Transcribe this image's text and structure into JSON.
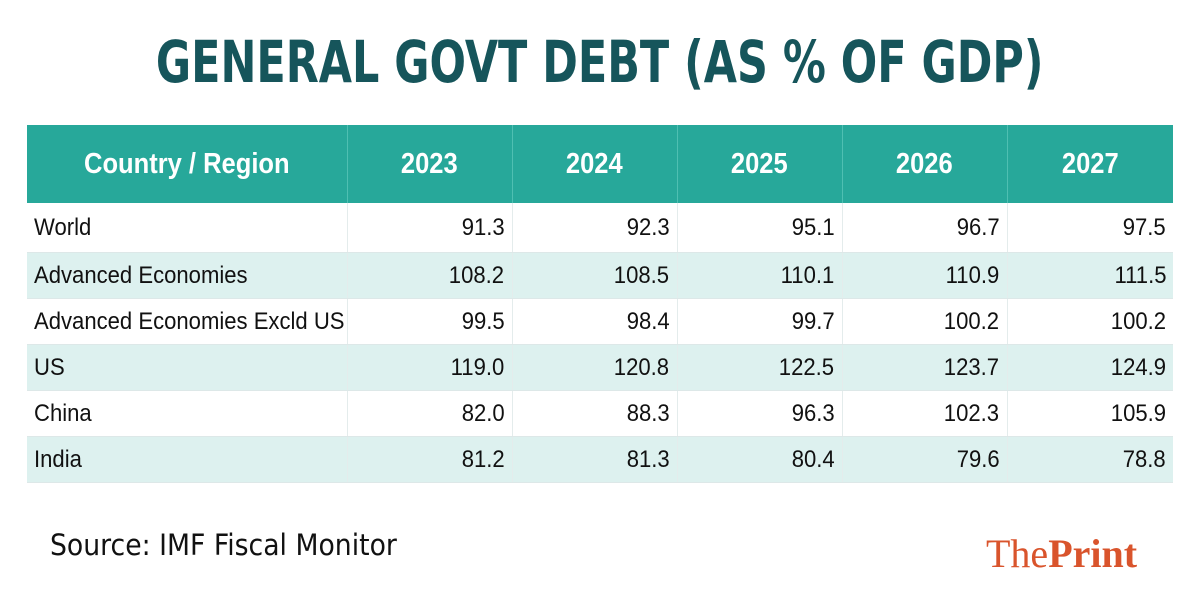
{
  "chart_data": {
    "type": "table",
    "title": "GENERAL GOVT DEBT (AS % OF GDP)",
    "columns": [
      "Country / Region",
      "2023",
      "2024",
      "2025",
      "2026",
      "2027"
    ],
    "rows": [
      {
        "label": "World",
        "values": [
          "91.3",
          "92.3",
          "95.1",
          "96.7",
          "97.5"
        ]
      },
      {
        "label": "Advanced Economies",
        "values": [
          "108.2",
          "108.5",
          "110.1",
          "110.9",
          "111.5"
        ]
      },
      {
        "label": "Advanced Economies Excld US",
        "values": [
          "99.5",
          "98.4",
          "99.7",
          "100.2",
          "100.2"
        ]
      },
      {
        "label": "US",
        "values": [
          "119.0",
          "120.8",
          "122.5",
          "123.7",
          "124.9"
        ]
      },
      {
        "label": "China",
        "values": [
          "82.0",
          "88.3",
          "96.3",
          "102.3",
          "105.9"
        ]
      },
      {
        "label": "India",
        "values": [
          "81.2",
          "81.3",
          "80.4",
          "79.6",
          "78.8"
        ]
      }
    ]
  },
  "source": "Source: IMF Fiscal Monitor",
  "logo": {
    "the": "The",
    "print": "Print"
  },
  "colors": {
    "title": "#16555b",
    "header_bg": "#27a89a",
    "stripe_bg": "#ddf1ef",
    "logo": "#d9542c"
  }
}
